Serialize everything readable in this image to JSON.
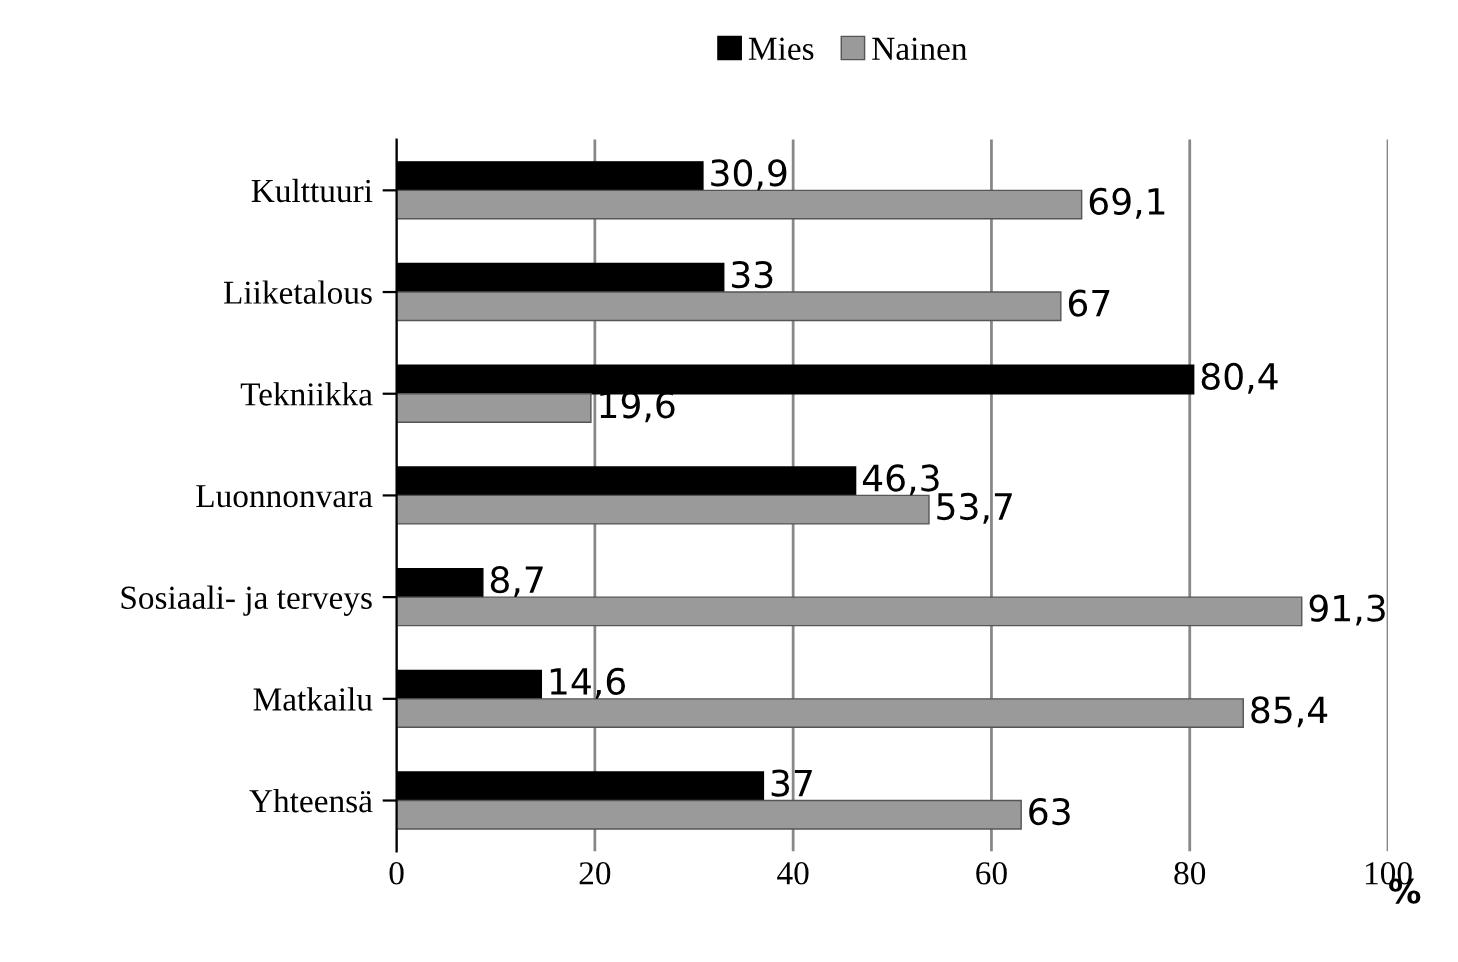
{
  "chart_data": {
    "type": "bar",
    "orientation": "horizontal",
    "xlabel": "%",
    "categories": [
      "Kulttuuri",
      "Liiketalous",
      "Tekniikka",
      "Luonnonvara",
      "Sosiaali- ja terveys",
      "Matkailu",
      "Yhteensä"
    ],
    "series": [
      {
        "name": "Mies",
        "color": "#000000",
        "values": [
          30.9,
          33,
          80.4,
          46.3,
          8.7,
          14.6,
          37
        ],
        "value_labels": [
          "30,9",
          "33",
          "80,4",
          "46,3",
          "8,7",
          "14,6",
          "37"
        ]
      },
      {
        "name": "Nainen",
        "color": "#9a9a9a",
        "values": [
          69.1,
          67,
          19.6,
          53.7,
          91.3,
          85.4,
          63
        ],
        "value_labels": [
          "69,1",
          "67",
          "19,6",
          "53,7",
          "91,3",
          "85,4",
          "63"
        ]
      }
    ],
    "xlim": [
      0,
      100
    ],
    "xticks": [
      0,
      20,
      40,
      60,
      80,
      100
    ],
    "grid": "x",
    "legend": "top"
  }
}
